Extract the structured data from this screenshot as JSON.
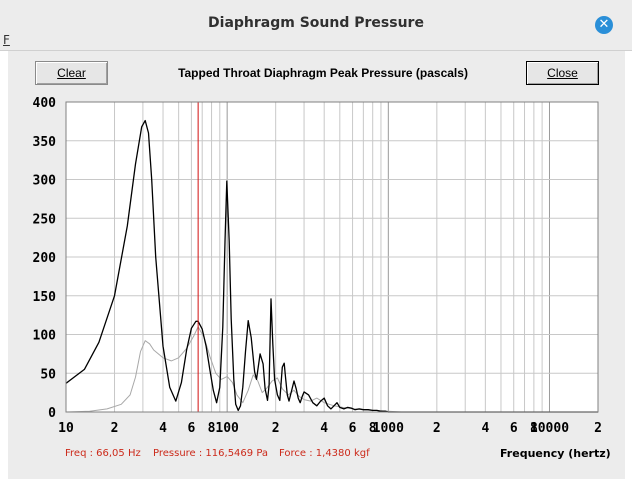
{
  "window": {
    "title": "Diaphragm Sound Pressure",
    "menu_stub": "F"
  },
  "toolbar": {
    "clear_label": "Clear",
    "close_label": "Close"
  },
  "plot_title": "Tapped Throat Diaphragm Peak Pressure (pascals)",
  "status": {
    "freq": "Freq : 66,05 Hz",
    "pressure": "Pressure : 116,5469 Pa",
    "force": "Force : 1,4380 kgf"
  },
  "x_axis_name": "Frequency (hertz)",
  "chart_data": {
    "type": "line",
    "title": "Tapped Throat Diaphragm Peak Pressure (pascals)",
    "xlabel": "Frequency (hertz)",
    "ylabel": "",
    "x_scale": "log",
    "xlim": [
      10,
      20000
    ],
    "ylim": [
      0,
      400
    ],
    "grid": true,
    "y_ticks": [
      "400",
      "350",
      "300",
      "250",
      "200",
      "150",
      "100",
      "50",
      "0"
    ],
    "x_ticks": [
      {
        "x": 10,
        "label": "10"
      },
      {
        "x": 20,
        "label": "2"
      },
      {
        "x": 40,
        "label": "4"
      },
      {
        "x": 60,
        "label": "6"
      },
      {
        "x": 80,
        "label": "8"
      },
      {
        "x": 100,
        "label": "100"
      },
      {
        "x": 200,
        "label": "2"
      },
      {
        "x": 400,
        "label": "4"
      },
      {
        "x": 600,
        "label": "6"
      },
      {
        "x": 800,
        "label": "8"
      },
      {
        "x": 1000,
        "label": "1000"
      },
      {
        "x": 2000,
        "label": "2"
      },
      {
        "x": 4000,
        "label": "4"
      },
      {
        "x": 6000,
        "label": "6"
      },
      {
        "x": 8000,
        "label": "8"
      },
      {
        "x": 10000,
        "label": "10000"
      },
      {
        "x": 20000,
        "label": "2"
      }
    ],
    "cursor_x": 66.05,
    "colors": {
      "main": "#000000",
      "secondary": "#a8a8a8",
      "cursor": "#d01010",
      "grid": "#c8c8c8"
    },
    "series": [
      {
        "x": [
          10,
          13,
          16,
          20,
          24,
          27,
          29.5,
          31,
          32.5,
          34,
          36,
          40,
          44,
          48,
          52,
          56,
          60,
          64,
          66,
          70,
          74,
          78,
          82,
          86,
          90,
          94,
          97,
          99.5,
          103,
          106,
          110,
          113,
          117,
          121,
          125,
          130,
          135,
          141,
          148,
          152,
          160,
          167,
          172,
          178,
          182,
          187,
          192,
          197,
          205,
          212,
          220,
          226,
          230,
          236,
          242,
          250,
          260,
          268,
          276,
          284,
          292,
          300,
          320,
          340,
          360,
          380,
          400,
          420,
          440,
          460,
          480,
          500,
          530,
          560,
          590,
          620,
          660,
          700,
          750,
          800,
          850,
          900,
          960,
          1000,
          1100,
          1200,
          1400,
          20000
        ],
        "y": [
          37,
          55,
          90,
          150,
          240,
          320,
          368,
          376,
          360,
          300,
          200,
          85,
          32,
          14,
          38,
          80,
          108,
          117,
          117,
          107,
          85,
          55,
          28,
          12,
          32,
          110,
          220,
          298,
          220,
          120,
          42,
          10,
          2,
          8,
          32,
          78,
          118,
          96,
          52,
          42,
          75,
          62,
          30,
          15,
          35,
          146,
          88,
          42,
          22,
          15,
          58,
          63,
          45,
          22,
          14,
          26,
          40,
          30,
          18,
          12,
          20,
          26,
          22,
          12,
          8,
          14,
          18,
          8,
          4,
          8,
          12,
          6,
          4,
          6,
          5,
          3,
          4,
          3,
          3,
          2,
          2,
          1,
          1,
          0,
          0,
          0,
          0,
          0
        ]
      },
      {
        "x": [
          10,
          14,
          18,
          22,
          25,
          27,
          29,
          31,
          33,
          35,
          40,
          45,
          50,
          56,
          62,
          66,
          72,
          78,
          85,
          92,
          100,
          108,
          115,
          125,
          135,
          145,
          155,
          165,
          175,
          190,
          205,
          220,
          240,
          260,
          280,
          300,
          330,
          360,
          400,
          460,
          520,
          600,
          700,
          800,
          1000,
          1200,
          20000
        ],
        "y": [
          0,
          1,
          4,
          10,
          22,
          45,
          78,
          92,
          88,
          80,
          70,
          66,
          70,
          82,
          98,
          110,
          96,
          72,
          50,
          42,
          46,
          38,
          22,
          12,
          28,
          48,
          40,
          25,
          30,
          40,
          44,
          30,
          22,
          28,
          20,
          16,
          14,
          18,
          12,
          8,
          6,
          4,
          3,
          2,
          1,
          0,
          0
        ]
      }
    ]
  }
}
